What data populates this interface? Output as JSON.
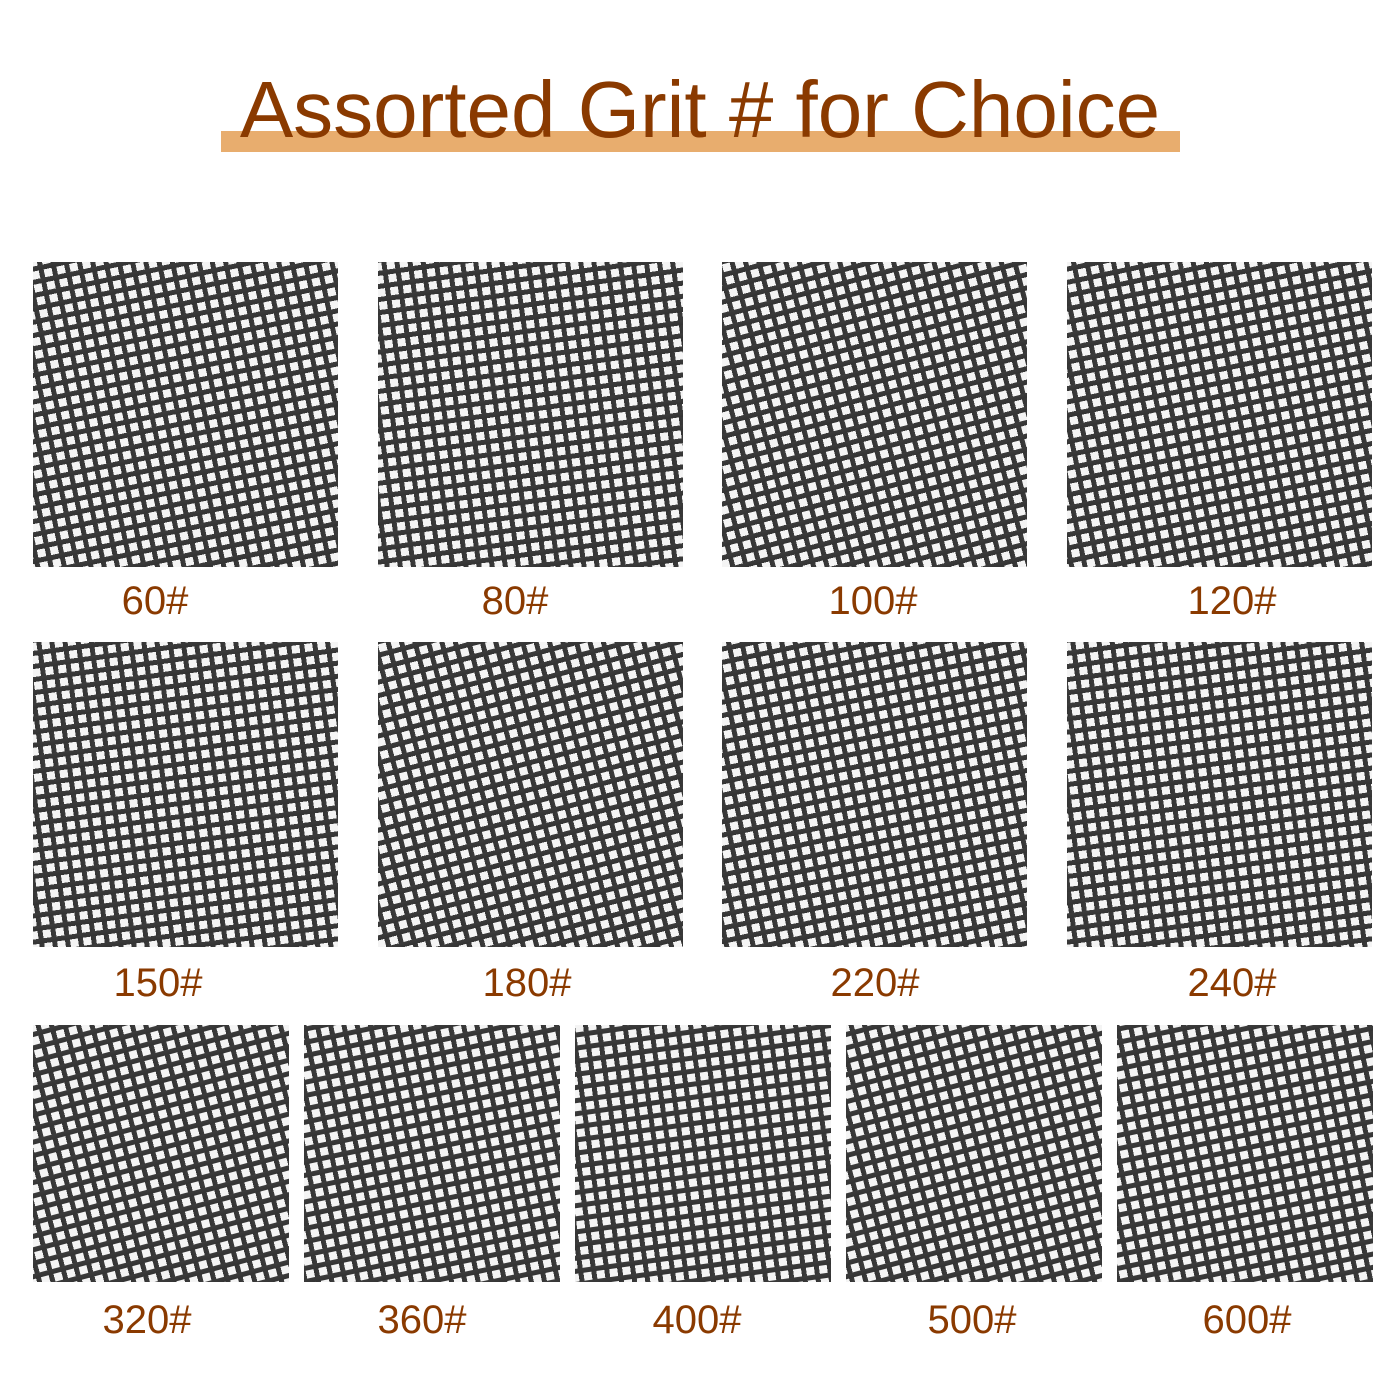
{
  "title": "Assorted Grit # for Choice",
  "colors": {
    "title": "#8a3a00",
    "underline": "#e8ad6e",
    "mesh": "#3a3a3a"
  },
  "grits": [
    {
      "label": "60#"
    },
    {
      "label": "80#"
    },
    {
      "label": "100#"
    },
    {
      "label": "120#"
    },
    {
      "label": "150#"
    },
    {
      "label": "180#"
    },
    {
      "label": "220#"
    },
    {
      "label": "240#"
    },
    {
      "label": "320#"
    },
    {
      "label": "360#"
    },
    {
      "label": "400#"
    },
    {
      "label": "500#"
    },
    {
      "label": "600#"
    }
  ]
}
